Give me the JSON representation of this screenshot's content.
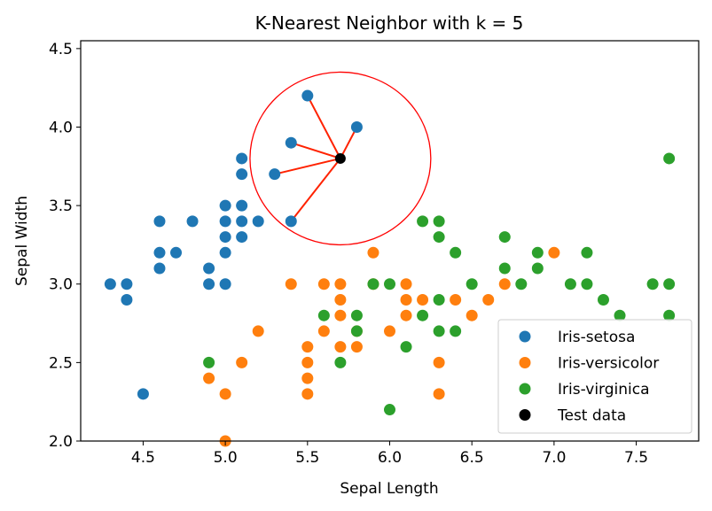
{
  "chart_data": {
    "type": "scatter",
    "title": "K-Nearest Neighbor with k = 5",
    "xlabel": "Sepal Length",
    "ylabel": "Sepal Width",
    "xlim": [
      4.12,
      7.88
    ],
    "ylim": [
      2.0,
      4.55
    ],
    "xticks": [
      "4.5",
      "5.0",
      "5.5",
      "6.0",
      "6.5",
      "7.0",
      "7.5"
    ],
    "yticks": [
      "2.0",
      "2.5",
      "3.0",
      "3.5",
      "4.0",
      "4.5"
    ],
    "grid": false,
    "legend_position": "lower-right",
    "series": [
      {
        "name": "Iris-setosa",
        "color": "#1f77b4",
        "points": [
          [
            4.3,
            3.0
          ],
          [
            4.4,
            3.0
          ],
          [
            4.4,
            2.9
          ],
          [
            4.5,
            2.3
          ],
          [
            4.6,
            3.4
          ],
          [
            4.6,
            3.2
          ],
          [
            4.6,
            3.1
          ],
          [
            4.7,
            3.2
          ],
          [
            4.8,
            3.4
          ],
          [
            4.9,
            3.1
          ],
          [
            4.9,
            3.0
          ],
          [
            5.0,
            3.5
          ],
          [
            5.0,
            3.4
          ],
          [
            5.0,
            3.3
          ],
          [
            5.0,
            3.2
          ],
          [
            5.0,
            3.0
          ],
          [
            5.1,
            3.8
          ],
          [
            5.1,
            3.7
          ],
          [
            5.1,
            3.5
          ],
          [
            5.1,
            3.4
          ],
          [
            5.1,
            3.3
          ],
          [
            5.2,
            3.4
          ],
          [
            5.3,
            3.7
          ],
          [
            5.4,
            3.9
          ],
          [
            5.4,
            3.4
          ],
          [
            5.5,
            4.2
          ],
          [
            5.8,
            4.0
          ]
        ]
      },
      {
        "name": "Iris-versicolor",
        "color": "#ff7f0e",
        "points": [
          [
            4.9,
            2.4
          ],
          [
            5.0,
            2.3
          ],
          [
            5.0,
            2.0
          ],
          [
            5.1,
            2.5
          ],
          [
            5.2,
            2.7
          ],
          [
            5.4,
            3.0
          ],
          [
            5.5,
            2.6
          ],
          [
            5.5,
            2.5
          ],
          [
            5.5,
            2.4
          ],
          [
            5.5,
            2.3
          ],
          [
            5.6,
            3.0
          ],
          [
            5.6,
            2.7
          ],
          [
            5.7,
            3.0
          ],
          [
            5.7,
            2.9
          ],
          [
            5.7,
            2.8
          ],
          [
            5.7,
            2.6
          ],
          [
            5.8,
            2.7
          ],
          [
            5.8,
            2.6
          ],
          [
            5.9,
            3.2
          ],
          [
            5.9,
            3.0
          ],
          [
            6.0,
            2.7
          ],
          [
            6.1,
            3.0
          ],
          [
            6.1,
            2.9
          ],
          [
            6.1,
            2.8
          ],
          [
            6.2,
            2.9
          ],
          [
            6.3,
            2.5
          ],
          [
            6.3,
            2.3
          ],
          [
            6.4,
            2.9
          ],
          [
            6.5,
            2.8
          ],
          [
            6.6,
            2.9
          ],
          [
            6.7,
            3.0
          ],
          [
            7.0,
            3.2
          ]
        ]
      },
      {
        "name": "Iris-virginica",
        "color": "#2ca02c",
        "points": [
          [
            4.9,
            2.5
          ],
          [
            5.6,
            2.8
          ],
          [
            5.7,
            2.5
          ],
          [
            5.8,
            2.8
          ],
          [
            5.8,
            2.7
          ],
          [
            5.9,
            3.0
          ],
          [
            6.0,
            3.0
          ],
          [
            6.0,
            2.2
          ],
          [
            6.1,
            2.6
          ],
          [
            6.2,
            3.4
          ],
          [
            6.2,
            2.8
          ],
          [
            6.3,
            3.4
          ],
          [
            6.3,
            3.3
          ],
          [
            6.3,
            2.9
          ],
          [
            6.3,
            2.7
          ],
          [
            6.4,
            3.2
          ],
          [
            6.4,
            2.7
          ],
          [
            6.5,
            3.0
          ],
          [
            6.7,
            3.3
          ],
          [
            6.7,
            3.1
          ],
          [
            6.8,
            3.0
          ],
          [
            6.9,
            3.2
          ],
          [
            6.9,
            3.1
          ],
          [
            7.1,
            3.0
          ],
          [
            7.2,
            3.2
          ],
          [
            7.2,
            3.0
          ],
          [
            7.3,
            2.9
          ],
          [
            7.4,
            2.8
          ],
          [
            7.6,
            3.0
          ],
          [
            7.7,
            3.8
          ],
          [
            7.7,
            3.0
          ],
          [
            7.7,
            2.8
          ]
        ]
      }
    ],
    "test_point": {
      "name": "Test data",
      "x": 5.7,
      "y": 3.8,
      "color": "#000000"
    },
    "neighbors": [
      [
        5.8,
        4.0
      ],
      [
        5.5,
        4.2
      ],
      [
        5.4,
        3.9
      ],
      [
        5.3,
        3.7
      ],
      [
        5.4,
        3.4
      ]
    ],
    "neighbor_line_color": "#ff2200",
    "circle_radius": 0.55,
    "circle_color": "#ff0000"
  }
}
